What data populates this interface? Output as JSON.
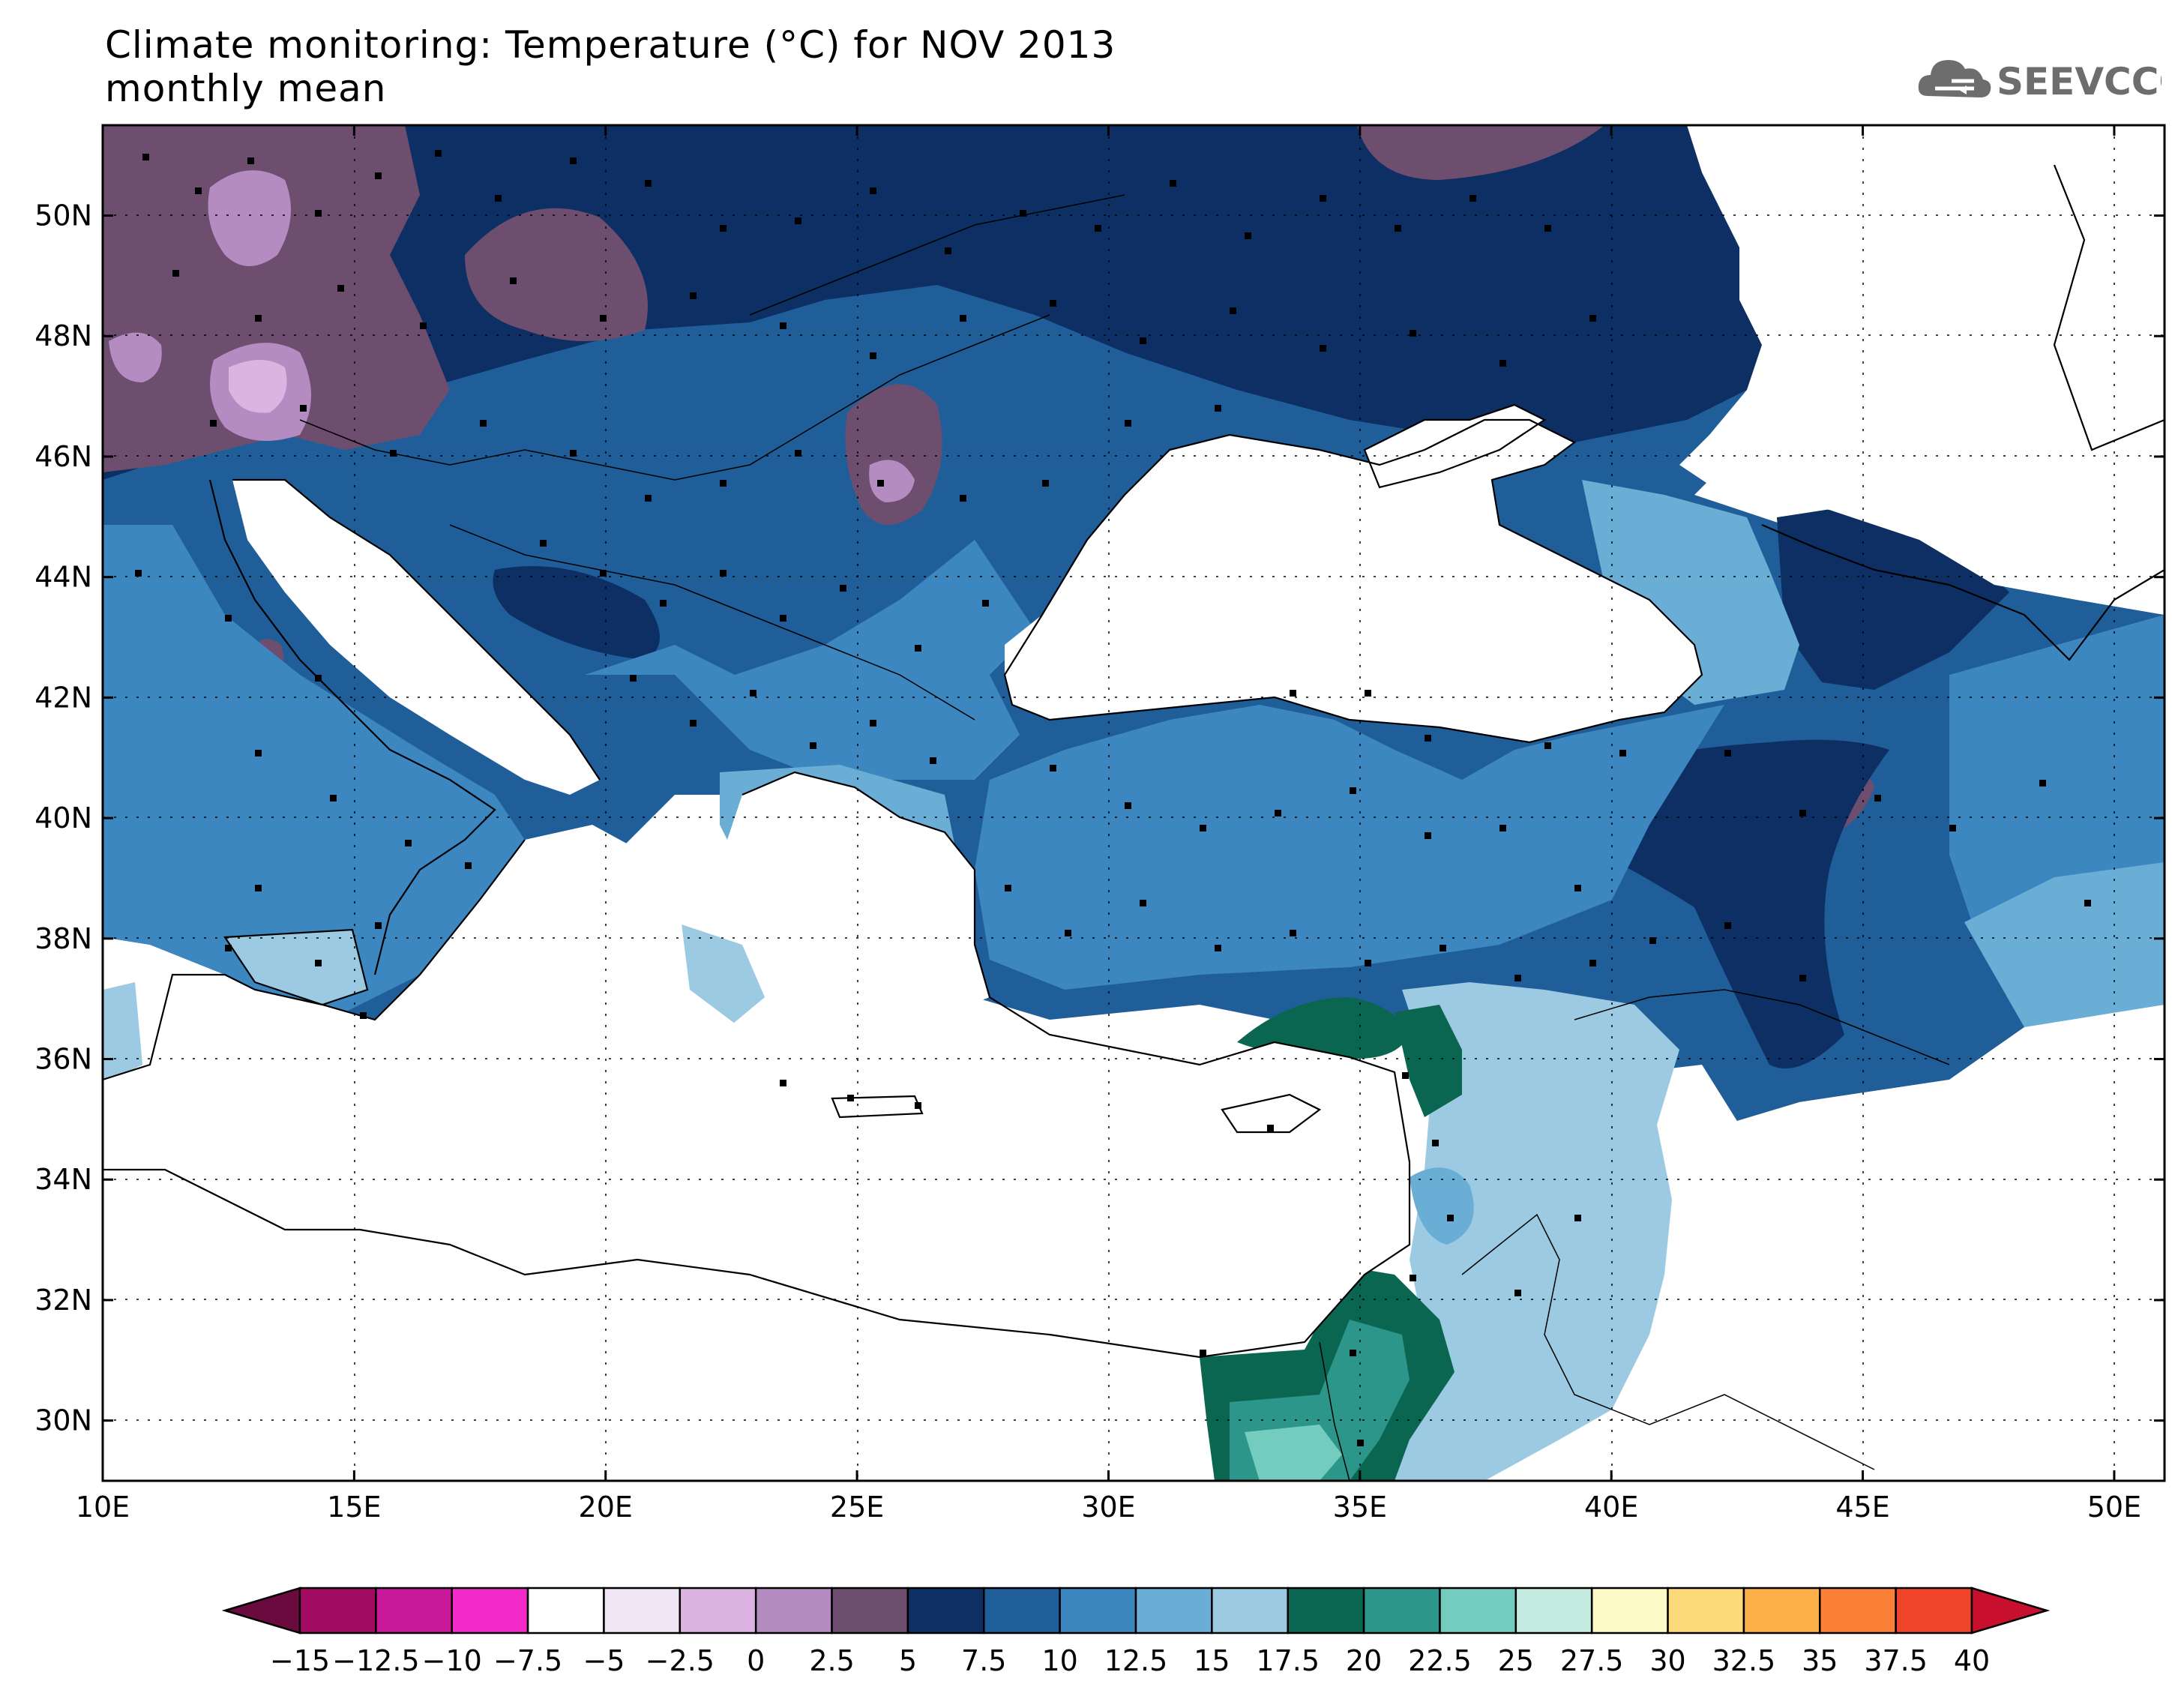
{
  "header": {
    "title": "Climate monitoring: Temperature (°C) for NOV 2013",
    "subtitle": "monthly mean",
    "logo_text": "SEEVCCC"
  },
  "map": {
    "variable": "Temperature (°C)",
    "period": "NOV 2013",
    "statistic": "monthly mean",
    "lon_range": [
      10,
      51
    ],
    "lat_range": [
      29,
      51.5
    ],
    "lat_labels": [
      "50N",
      "48N",
      "46N",
      "44N",
      "42N",
      "40N",
      "38N",
      "36N",
      "34N",
      "32N",
      "30N"
    ],
    "lat_values": [
      50,
      48,
      46,
      44,
      42,
      40,
      38,
      36,
      34,
      32,
      30
    ],
    "lon_labels": [
      "10E",
      "15E",
      "20E",
      "25E",
      "30E",
      "35E",
      "40E",
      "45E",
      "50E"
    ],
    "lon_values": [
      10,
      15,
      20,
      25,
      30,
      35,
      40,
      45,
      50
    ],
    "grid": "dotted"
  },
  "colorbar": {
    "labels": [
      "−15",
      "−12.5",
      "−10",
      "−7.5",
      "−5",
      "−2.5",
      "0",
      "2.5",
      "5",
      "7.5",
      "10",
      "12.5",
      "15",
      "17.5",
      "20",
      "22.5",
      "25",
      "27.5",
      "30",
      "32.5",
      "35",
      "37.5",
      "40"
    ],
    "colors": [
      "#6b0a3e",
      "#a10c62",
      "#c8199a",
      "#f22ac8",
      "#ffffff",
      "#f1e6f5",
      "#dbb4e2",
      "#b48cc2",
      "#6e4e6e",
      "#0d2f63",
      "#1f5e98",
      "#3d87c0",
      "#6aaed6",
      "#9ccae3",
      "#0a6650",
      "#2c968a",
      "#74ccbe",
      "#c4ebe0",
      "#fefac8",
      "#fedb7a",
      "#fdb04a",
      "#fb7f36",
      "#f0442a",
      "#c8102e"
    ]
  }
}
